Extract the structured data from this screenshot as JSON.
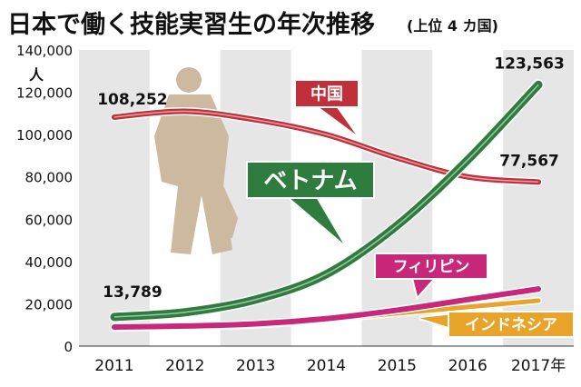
{
  "chart_data": {
    "type": "line",
    "title": "日本で働く技能実習生の年次推移",
    "subtitle": "(上位 4 カ国)",
    "ylabel": "人",
    "x_unit": "年",
    "categories": [
      "2011",
      "2012",
      "2013",
      "2014",
      "2015",
      "2016",
      "2017"
    ],
    "ylim": [
      0,
      140000
    ],
    "yticks": [
      0,
      20000,
      40000,
      60000,
      80000,
      100000,
      120000,
      140000
    ],
    "ytick_labels": [
      "0",
      "20,000",
      "40,000",
      "60,000",
      "80,000",
      "100,000",
      "120,000",
      "140,000"
    ],
    "grid": "alternating column bands",
    "series": [
      {
        "name": "中国",
        "values": [
          108252,
          111000,
          107000,
          100000,
          89000,
          80000,
          77567
        ]
      },
      {
        "name": "ベトナム",
        "values": [
          13789,
          16000,
          22000,
          34000,
          57000,
          88000,
          123563
        ]
      },
      {
        "name": "フィリピン",
        "values": [
          9000,
          9500,
          10500,
          13000,
          17000,
          22000,
          27000
        ]
      },
      {
        "name": "インドネシア",
        "values": [
          8500,
          9000,
          10000,
          12500,
          15500,
          18500,
          21500
        ]
      }
    ],
    "annotations": [
      {
        "text": "108,252",
        "series": 0,
        "index": 0
      },
      {
        "text": "77,567",
        "series": 0,
        "index": 6
      },
      {
        "text": "13,789",
        "series": 1,
        "index": 0
      },
      {
        "text": "123,563",
        "series": 1,
        "index": 6
      }
    ]
  },
  "colors": {
    "中国": "#c0303a",
    "ベトナム": "#2f7d3e",
    "フィリピン": "#c8287a",
    "インドネシア": "#e8a42a",
    "band": "#e6e6e6",
    "silhouette": "#cdb8a0"
  }
}
